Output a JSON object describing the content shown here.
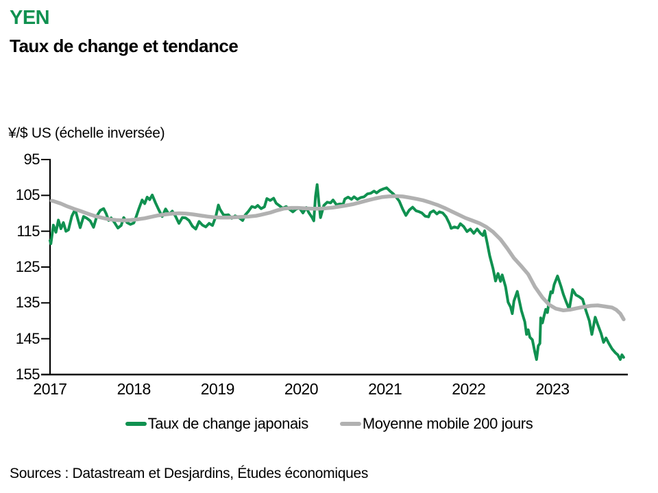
{
  "header": {
    "title": "YEN",
    "subtitle": "Taux de change et tendance"
  },
  "colors": {
    "green": "#109150",
    "gray": "#b1b1b1",
    "axis": "#000000"
  },
  "legend": {
    "items": [
      {
        "label": "Taux de change japonais",
        "color": "#109150"
      },
      {
        "label": "Moyenne mobile 200 jours",
        "color": "#b1b1b1"
      }
    ]
  },
  "footer": {
    "sources": "Sources : Datastream et Desjardins, Études économiques"
  },
  "chart_data": {
    "type": "line",
    "title": "YEN — Taux de change et tendance",
    "axis_label": "¥/$ US (échelle inversée)",
    "x_axis": {
      "min": 2017.0,
      "max": 2023.9,
      "ticks": [
        2017,
        2018,
        2019,
        2020,
        2021,
        2022,
        2023
      ]
    },
    "y_axis": {
      "label": "¥/$ US",
      "min": 95,
      "max": 155,
      "ticks": [
        95,
        105,
        115,
        125,
        135,
        145,
        155
      ],
      "inverted": true,
      "grid": false
    },
    "legend_position": "bottom",
    "series": [
      {
        "name": "Taux de change japonais",
        "color": "#109150",
        "width": 4,
        "points": [
          [
            2017.0,
            117.6
          ],
          [
            2017.01,
            118.5
          ],
          [
            2017.04,
            113.3
          ],
          [
            2017.07,
            115.3
          ],
          [
            2017.1,
            111.9
          ],
          [
            2017.13,
            114.3
          ],
          [
            2017.16,
            112.6
          ],
          [
            2017.19,
            115.0
          ],
          [
            2017.22,
            114.6
          ],
          [
            2017.26,
            110.8
          ],
          [
            2017.3,
            108.9
          ],
          [
            2017.33,
            111.5
          ],
          [
            2017.36,
            114.0
          ],
          [
            2017.4,
            110.9
          ],
          [
            2017.44,
            111.4
          ],
          [
            2017.48,
            112.1
          ],
          [
            2017.52,
            113.9
          ],
          [
            2017.56,
            110.7
          ],
          [
            2017.6,
            109.2
          ],
          [
            2017.64,
            108.7
          ],
          [
            2017.67,
            110.1
          ],
          [
            2017.7,
            112.0
          ],
          [
            2017.73,
            111.3
          ],
          [
            2017.77,
            112.6
          ],
          [
            2017.81,
            114.1
          ],
          [
            2017.85,
            113.4
          ],
          [
            2017.88,
            111.2
          ],
          [
            2017.92,
            112.6
          ],
          [
            2017.96,
            113.1
          ],
          [
            2018.0,
            112.7
          ],
          [
            2018.03,
            110.9
          ],
          [
            2018.06,
            108.8
          ],
          [
            2018.1,
            106.3
          ],
          [
            2018.13,
            107.3
          ],
          [
            2018.16,
            105.5
          ],
          [
            2018.19,
            106.2
          ],
          [
            2018.22,
            104.9
          ],
          [
            2018.26,
            107.1
          ],
          [
            2018.3,
            109.1
          ],
          [
            2018.34,
            110.9
          ],
          [
            2018.38,
            108.8
          ],
          [
            2018.42,
            110.3
          ],
          [
            2018.46,
            109.4
          ],
          [
            2018.5,
            110.9
          ],
          [
            2018.54,
            112.8
          ],
          [
            2018.58,
            111.2
          ],
          [
            2018.62,
            111.3
          ],
          [
            2018.66,
            112.0
          ],
          [
            2018.7,
            113.6
          ],
          [
            2018.74,
            114.4
          ],
          [
            2018.78,
            112.3
          ],
          [
            2018.82,
            113.3
          ],
          [
            2018.86,
            113.8
          ],
          [
            2018.9,
            112.8
          ],
          [
            2018.94,
            113.4
          ],
          [
            2018.98,
            110.9
          ],
          [
            2019.01,
            107.7
          ],
          [
            2019.03,
            108.9
          ],
          [
            2019.07,
            110.4
          ],
          [
            2019.1,
            110.5
          ],
          [
            2019.13,
            110.4
          ],
          [
            2019.17,
            111.4
          ],
          [
            2019.21,
            110.7
          ],
          [
            2019.25,
            111.1
          ],
          [
            2019.3,
            112.0
          ],
          [
            2019.33,
            110.5
          ],
          [
            2019.37,
            109.4
          ],
          [
            2019.41,
            108.1
          ],
          [
            2019.45,
            108.4
          ],
          [
            2019.48,
            107.8
          ],
          [
            2019.52,
            108.7
          ],
          [
            2019.56,
            108.2
          ],
          [
            2019.59,
            105.9
          ],
          [
            2019.63,
            106.4
          ],
          [
            2019.67,
            105.8
          ],
          [
            2019.7,
            107.2
          ],
          [
            2019.74,
            107.9
          ],
          [
            2019.78,
            108.6
          ],
          [
            2019.82,
            108.1
          ],
          [
            2019.86,
            108.9
          ],
          [
            2019.9,
            109.6
          ],
          [
            2019.94,
            108.8
          ],
          [
            2019.98,
            108.6
          ],
          [
            2020.02,
            109.9
          ],
          [
            2020.06,
            108.4
          ],
          [
            2020.09,
            109.8
          ],
          [
            2020.13,
            111.2
          ],
          [
            2020.15,
            112.1
          ],
          [
            2020.17,
            105.3
          ],
          [
            2020.19,
            102.0
          ],
          [
            2020.21,
            107.0
          ],
          [
            2020.23,
            111.2
          ],
          [
            2020.27,
            107.8
          ],
          [
            2020.31,
            106.9
          ],
          [
            2020.35,
            107.1
          ],
          [
            2020.38,
            106.3
          ],
          [
            2020.42,
            107.6
          ],
          [
            2020.46,
            107.4
          ],
          [
            2020.5,
            107.5
          ],
          [
            2020.52,
            106.0
          ],
          [
            2020.56,
            105.5
          ],
          [
            2020.6,
            106.1
          ],
          [
            2020.63,
            105.4
          ],
          [
            2020.67,
            106.1
          ],
          [
            2020.71,
            105.6
          ],
          [
            2020.75,
            105.4
          ],
          [
            2020.79,
            104.6
          ],
          [
            2020.83,
            104.4
          ],
          [
            2020.87,
            103.8
          ],
          [
            2020.9,
            104.3
          ],
          [
            2020.94,
            103.6
          ],
          [
            2020.98,
            103.2
          ],
          [
            2021.02,
            102.9
          ],
          [
            2021.06,
            103.8
          ],
          [
            2021.1,
            104.6
          ],
          [
            2021.13,
            105.4
          ],
          [
            2021.17,
            106.6
          ],
          [
            2021.21,
            108.8
          ],
          [
            2021.25,
            110.6
          ],
          [
            2021.29,
            109.1
          ],
          [
            2021.33,
            108.3
          ],
          [
            2021.37,
            109.3
          ],
          [
            2021.4,
            109.5
          ],
          [
            2021.44,
            109.9
          ],
          [
            2021.48,
            110.8
          ],
          [
            2021.52,
            111.0
          ],
          [
            2021.54,
            109.8
          ],
          [
            2021.58,
            109.3
          ],
          [
            2021.62,
            110.2
          ],
          [
            2021.65,
            109.6
          ],
          [
            2021.69,
            109.9
          ],
          [
            2021.73,
            111.0
          ],
          [
            2021.77,
            112.9
          ],
          [
            2021.79,
            114.2
          ],
          [
            2021.83,
            113.8
          ],
          [
            2021.87,
            114.1
          ],
          [
            2021.9,
            112.9
          ],
          [
            2021.94,
            113.7
          ],
          [
            2021.98,
            115.1
          ],
          [
            2022.02,
            114.4
          ],
          [
            2022.06,
            115.6
          ],
          [
            2022.1,
            114.4
          ],
          [
            2022.14,
            115.6
          ],
          [
            2022.17,
            116.2
          ],
          [
            2022.19,
            114.9
          ],
          [
            2022.22,
            118.2
          ],
          [
            2022.25,
            121.8
          ],
          [
            2022.29,
            125.4
          ],
          [
            2022.32,
            128.9
          ],
          [
            2022.35,
            126.8
          ],
          [
            2022.38,
            129.0
          ],
          [
            2022.4,
            127.2
          ],
          [
            2022.44,
            130.5
          ],
          [
            2022.47,
            134.8
          ],
          [
            2022.5,
            136.2
          ],
          [
            2022.52,
            138.0
          ],
          [
            2022.54,
            134.5
          ],
          [
            2022.58,
            131.8
          ],
          [
            2022.6,
            134.0
          ],
          [
            2022.63,
            137.2
          ],
          [
            2022.65,
            138.8
          ],
          [
            2022.67,
            140.3
          ],
          [
            2022.69,
            143.8
          ],
          [
            2022.71,
            142.5
          ],
          [
            2022.73,
            144.6
          ],
          [
            2022.76,
            145.3
          ],
          [
            2022.79,
            148.8
          ],
          [
            2022.81,
            150.8
          ],
          [
            2022.83,
            147.0
          ],
          [
            2022.85,
            146.3
          ],
          [
            2022.86,
            139.2
          ],
          [
            2022.88,
            140.6
          ],
          [
            2022.9,
            138.6
          ],
          [
            2022.92,
            136.8
          ],
          [
            2022.94,
            137.7
          ],
          [
            2022.96,
            134.2
          ],
          [
            2022.98,
            131.9
          ],
          [
            2023.0,
            132.2
          ],
          [
            2023.02,
            129.9
          ],
          [
            2023.06,
            127.5
          ],
          [
            2023.1,
            130.3
          ],
          [
            2023.13,
            132.6
          ],
          [
            2023.16,
            134.5
          ],
          [
            2023.2,
            136.8
          ],
          [
            2023.24,
            131.3
          ],
          [
            2023.28,
            132.8
          ],
          [
            2023.32,
            133.3
          ],
          [
            2023.36,
            134.0
          ],
          [
            2023.4,
            137.2
          ],
          [
            2023.44,
            140.0
          ],
          [
            2023.47,
            143.8
          ],
          [
            2023.51,
            139.0
          ],
          [
            2023.54,
            141.0
          ],
          [
            2023.58,
            143.5
          ],
          [
            2023.61,
            146.0
          ],
          [
            2023.64,
            144.8
          ],
          [
            2023.67,
            146.2
          ],
          [
            2023.71,
            147.8
          ],
          [
            2023.75,
            148.9
          ],
          [
            2023.78,
            149.5
          ],
          [
            2023.81,
            150.8
          ],
          [
            2023.83,
            149.5
          ],
          [
            2023.85,
            150.2
          ]
        ]
      },
      {
        "name": "Moyenne mobile 200 jours",
        "color": "#b1b1b1",
        "width": 5.5,
        "points": [
          [
            2017.02,
            106.5
          ],
          [
            2017.04,
            106.6
          ],
          [
            2017.13,
            107.3
          ],
          [
            2017.21,
            108.1
          ],
          [
            2017.29,
            108.8
          ],
          [
            2017.38,
            109.5
          ],
          [
            2017.46,
            110.2
          ],
          [
            2017.54,
            110.8
          ],
          [
            2017.63,
            111.3
          ],
          [
            2017.71,
            111.7
          ],
          [
            2017.79,
            111.9
          ],
          [
            2017.88,
            112.0
          ],
          [
            2017.96,
            111.9
          ],
          [
            2018.04,
            111.7
          ],
          [
            2018.13,
            111.4
          ],
          [
            2018.21,
            111.0
          ],
          [
            2018.29,
            110.6
          ],
          [
            2018.38,
            110.3
          ],
          [
            2018.46,
            110.1
          ],
          [
            2018.54,
            110.0
          ],
          [
            2018.63,
            110.1
          ],
          [
            2018.71,
            110.3
          ],
          [
            2018.79,
            110.6
          ],
          [
            2018.88,
            110.9
          ],
          [
            2018.96,
            111.1
          ],
          [
            2019.04,
            111.2
          ],
          [
            2019.13,
            111.2
          ],
          [
            2019.21,
            111.1
          ],
          [
            2019.29,
            111.0
          ],
          [
            2019.38,
            110.9
          ],
          [
            2019.46,
            110.7
          ],
          [
            2019.54,
            110.3
          ],
          [
            2019.63,
            109.8
          ],
          [
            2019.71,
            109.2
          ],
          [
            2019.79,
            108.7
          ],
          [
            2019.88,
            108.5
          ],
          [
            2019.96,
            108.5
          ],
          [
            2020.04,
            108.6
          ],
          [
            2020.13,
            108.7
          ],
          [
            2020.21,
            108.7
          ],
          [
            2020.29,
            108.6
          ],
          [
            2020.38,
            108.4
          ],
          [
            2020.46,
            108.1
          ],
          [
            2020.54,
            107.8
          ],
          [
            2020.63,
            107.4
          ],
          [
            2020.71,
            106.9
          ],
          [
            2020.79,
            106.4
          ],
          [
            2020.88,
            105.9
          ],
          [
            2020.96,
            105.5
          ],
          [
            2021.04,
            105.3
          ],
          [
            2021.13,
            105.2
          ],
          [
            2021.21,
            105.3
          ],
          [
            2021.29,
            105.6
          ],
          [
            2021.38,
            106.0
          ],
          [
            2021.46,
            106.4
          ],
          [
            2021.54,
            107.0
          ],
          [
            2021.63,
            107.7
          ],
          [
            2021.71,
            108.5
          ],
          [
            2021.79,
            109.4
          ],
          [
            2021.88,
            110.4
          ],
          [
            2021.96,
            111.3
          ],
          [
            2022.04,
            112.0
          ],
          [
            2022.13,
            112.8
          ],
          [
            2022.21,
            113.8
          ],
          [
            2022.29,
            115.2
          ],
          [
            2022.38,
            117.3
          ],
          [
            2022.46,
            119.8
          ],
          [
            2022.54,
            122.5
          ],
          [
            2022.63,
            124.8
          ],
          [
            2022.71,
            127.0
          ],
          [
            2022.79,
            130.5
          ],
          [
            2022.88,
            133.5
          ],
          [
            2022.96,
            135.5
          ],
          [
            2023.04,
            136.6
          ],
          [
            2023.13,
            137.1
          ],
          [
            2023.21,
            136.9
          ],
          [
            2023.29,
            136.5
          ],
          [
            2023.38,
            136.1
          ],
          [
            2023.46,
            135.8
          ],
          [
            2023.54,
            135.7
          ],
          [
            2023.63,
            136.0
          ],
          [
            2023.71,
            136.3
          ],
          [
            2023.76,
            136.9
          ],
          [
            2023.81,
            138.0
          ],
          [
            2023.85,
            139.6
          ]
        ]
      }
    ]
  }
}
